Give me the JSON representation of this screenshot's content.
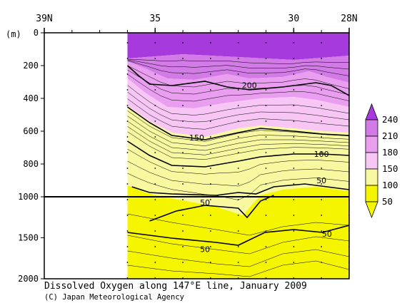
{
  "chart_data": {
    "type": "contour",
    "title": "Dissolved Oxygen along 147°E line, January 2009",
    "credit": "(C) Japan Meteorological Agency",
    "x_axis": {
      "label": "",
      "ticks": [
        "39N",
        "35",
        "30",
        "28N"
      ],
      "tick_values": [
        39,
        35,
        30,
        28
      ],
      "range": [
        39,
        28
      ]
    },
    "y_axis": {
      "unit_label": "(m)",
      "ticks": [
        "0",
        "200",
        "400",
        "600",
        "800",
        "1000",
        "1500",
        "2000"
      ],
      "tick_values": [
        0,
        200,
        400,
        600,
        800,
        1000,
        1500,
        2000
      ],
      "range": [
        0,
        2000
      ],
      "scale_break_at": 1000
    },
    "data_extent_lat": [
      36,
      28
    ],
    "colorbar": {
      "levels": [
        "50",
        "100",
        "150",
        "180",
        "210",
        "240"
      ],
      "colors": [
        "#f5f500",
        "#f8f8a0",
        "#f7c6f5",
        "#ea9ef0",
        "#d27ae6",
        "#a63adc"
      ]
    },
    "contour_labels": [
      {
        "text": "200",
        "lat": 31.6,
        "depth": 320
      },
      {
        "text": "150",
        "lat": 33.5,
        "depth": 640
      },
      {
        "text": "100",
        "lat": 29.0,
        "depth": 740
      },
      {
        "text": "50",
        "lat": 29.0,
        "depth": 900
      },
      {
        "text": "50",
        "lat": 33.2,
        "depth": 1070
      },
      {
        "text": "50",
        "lat": 28.8,
        "depth": 1450
      },
      {
        "text": "50",
        "lat": 33.2,
        "depth": 1640
      }
    ],
    "stations_lat": [
      36,
      35,
      34,
      33,
      32,
      31,
      30,
      29,
      28
    ]
  }
}
